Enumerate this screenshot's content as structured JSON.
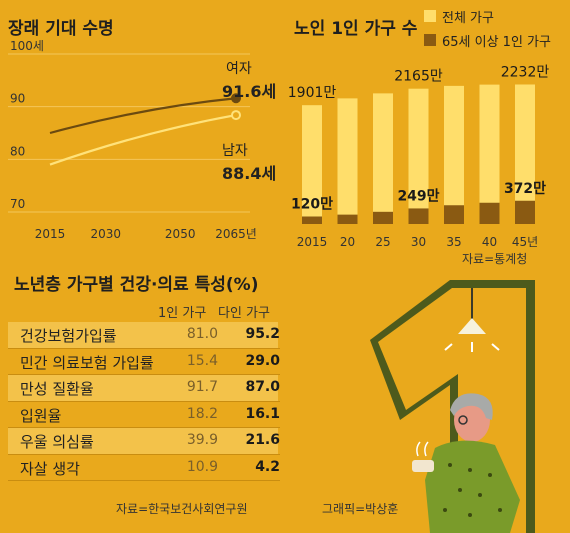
{
  "colors": {
    "background": "#e9a91c",
    "light_yellow": "#ffde6b",
    "dark_brown": "#8a5a12",
    "line_dark": "#7a5210",
    "table_row": "#f3c24a",
    "olive": "#4d5a1c"
  },
  "life_expectancy": {
    "title": "장래 기대 수명",
    "y_ticks": [
      "100세",
      "90",
      "80",
      "70"
    ],
    "x_ticks": [
      "2015",
      "2030",
      "2050",
      "2065년"
    ],
    "female_label": "여자",
    "female_value_label": "91.6세",
    "male_label": "남자",
    "male_value_label": "88.4세"
  },
  "households": {
    "title": "노인 1인 가구 수",
    "legend_total": "전체 가구",
    "legend_elderly": "65세 이상 1인 가구",
    "x_ticks": [
      "2015",
      "20",
      "25",
      "30",
      "35",
      "40",
      "45년"
    ],
    "total_labels": [
      "1901만",
      "2165만",
      "2232만"
    ],
    "elderly_labels": [
      "120만",
      "249만",
      "372만"
    ],
    "source": "자료=통계청"
  },
  "health_table": {
    "title": "노년층 가구별 건강·의료 특성(%)",
    "col1": "1인 가구",
    "col2": "다인 가구",
    "rows": [
      {
        "label": "건강보험가입률",
        "v1": "81.0",
        "v2": "95.2"
      },
      {
        "label": "민간 의료보험 가입률",
        "v1": "15.4",
        "v2": "29.0"
      },
      {
        "label": "만성 질환율",
        "v1": "91.7",
        "v2": "87.0"
      },
      {
        "label": "입원율",
        "v1": "18.2",
        "v2": "16.1"
      },
      {
        "label": "우울 의심률",
        "v1": "39.9",
        "v2": "21.6"
      },
      {
        "label": "자살 생각",
        "v1": "10.9",
        "v2": "4.2"
      }
    ],
    "source": "자료=한국보건사회연구원"
  },
  "credit": "그래픽=박상훈",
  "chart_data": [
    {
      "type": "line",
      "title": "장래 기대 수명",
      "x": [
        2015,
        2065
      ],
      "ylim": [
        70,
        100
      ],
      "series": [
        {
          "name": "여자",
          "values": [
            85,
            91.6
          ]
        },
        {
          "name": "남자",
          "values": [
            79,
            88.4
          ]
        }
      ]
    },
    {
      "type": "bar",
      "title": "노인 1인 가구 수",
      "categories": [
        "2015",
        "20",
        "25",
        "30",
        "35",
        "40",
        "45년"
      ],
      "series": [
        {
          "name": "전체 가구",
          "values": [
            1901,
            2010,
            2090,
            2165,
            2210,
            2230,
            2232
          ]
        },
        {
          "name": "65세 이상 1인 가구",
          "values": [
            120,
            150,
            195,
            249,
            300,
            340,
            372
          ]
        }
      ],
      "value_labels": {
        "total": {
          "2015": "1901만",
          "30": "2165만",
          "45년": "2232만"
        },
        "elderly": {
          "2015": "120만",
          "30": "249만",
          "45년": "372만"
        }
      }
    }
  ]
}
